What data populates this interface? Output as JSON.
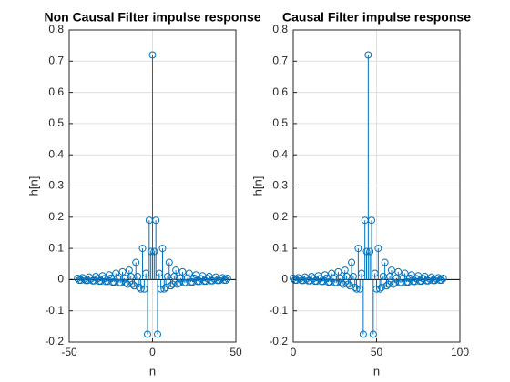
{
  "chart_data": [
    {
      "type": "stem",
      "title": "Non Causal Filter impulse response",
      "xlabel": "n",
      "ylabel": "h[n]",
      "color": "#0072bd",
      "grid": true,
      "xlim": [
        -50,
        50
      ],
      "xticks": [
        -50,
        0,
        50
      ],
      "ylim": [
        -0.2,
        0.8
      ],
      "yticks": [
        -0.2,
        -0.1,
        0,
        0.1,
        0.2,
        0.3,
        0.4,
        0.5,
        0.6,
        0.7,
        0.8
      ],
      "x": [
        -45,
        -44,
        -43,
        -42,
        -41,
        -40,
        -39,
        -38,
        -37,
        -36,
        -35,
        -34,
        -33,
        -32,
        -31,
        -30,
        -29,
        -28,
        -27,
        -26,
        -25,
        -24,
        -23,
        -22,
        -21,
        -20,
        -19,
        -18,
        -17,
        -16,
        -15,
        -14,
        -13,
        -12,
        -11,
        -10,
        -9,
        -8,
        -7,
        -6,
        -5,
        -4,
        -3,
        -2,
        -1,
        0,
        1,
        2,
        3,
        4,
        5,
        6,
        7,
        8,
        9,
        10,
        11,
        12,
        13,
        14,
        15,
        16,
        17,
        18,
        19,
        20,
        21,
        22,
        23,
        24,
        25,
        26,
        27,
        28,
        29,
        30,
        31,
        32,
        33,
        34,
        35,
        36,
        37,
        38,
        39,
        40,
        41,
        42,
        43,
        44,
        45
      ],
      "values": [
        0.004,
        -0.002,
        -0.002,
        0.006,
        0.002,
        -0.003,
        -0.003,
        0.008,
        0.002,
        -0.004,
        -0.004,
        0.01,
        0.003,
        -0.005,
        -0.005,
        0.012,
        0.003,
        -0.006,
        -0.006,
        0.015,
        0.004,
        -0.008,
        -0.008,
        0.02,
        0.005,
        -0.01,
        -0.01,
        0.025,
        0.005,
        -0.01,
        -0.015,
        0.03,
        0.01,
        -0.015,
        -0.02,
        0.055,
        0.01,
        -0.025,
        -0.03,
        0.1,
        -0.03,
        0.02,
        -0.175,
        0.19,
        0.09,
        0.72,
        0.09,
        0.19,
        -0.175,
        0.02,
        -0.03,
        0.1,
        -0.03,
        -0.025,
        0.01,
        0.055,
        -0.02,
        -0.015,
        0.01,
        0.03,
        -0.015,
        -0.01,
        0.005,
        0.025,
        -0.01,
        -0.01,
        0.005,
        0.02,
        -0.008,
        -0.008,
        0.004,
        0.015,
        -0.006,
        -0.006,
        0.003,
        0.012,
        -0.005,
        -0.005,
        0.003,
        0.01,
        -0.004,
        -0.004,
        0.002,
        0.008,
        -0.003,
        -0.003,
        0.002,
        0.006,
        -0.002,
        -0.002,
        0.004
      ]
    },
    {
      "type": "stem",
      "title": "Causal Filter impulse response",
      "xlabel": "n",
      "ylabel": "h[n]",
      "color": "#0072bd",
      "grid": true,
      "xlim": [
        0,
        100
      ],
      "xticks": [
        0,
        50,
        100
      ],
      "ylim": [
        -0.2,
        0.8
      ],
      "yticks": [
        -0.2,
        -0.1,
        0,
        0.1,
        0.2,
        0.3,
        0.4,
        0.5,
        0.6,
        0.7,
        0.8
      ],
      "x": [
        0,
        1,
        2,
        3,
        4,
        5,
        6,
        7,
        8,
        9,
        10,
        11,
        12,
        13,
        14,
        15,
        16,
        17,
        18,
        19,
        20,
        21,
        22,
        23,
        24,
        25,
        26,
        27,
        28,
        29,
        30,
        31,
        32,
        33,
        34,
        35,
        36,
        37,
        38,
        39,
        40,
        41,
        42,
        43,
        44,
        45,
        46,
        47,
        48,
        49,
        50,
        51,
        52,
        53,
        54,
        55,
        56,
        57,
        58,
        59,
        60,
        61,
        62,
        63,
        64,
        65,
        66,
        67,
        68,
        69,
        70,
        71,
        72,
        73,
        74,
        75,
        76,
        77,
        78,
        79,
        80,
        81,
        82,
        83,
        84,
        85,
        86,
        87,
        88,
        89,
        90
      ],
      "values": [
        0.004,
        -0.002,
        -0.002,
        0.006,
        0.002,
        -0.003,
        -0.003,
        0.008,
        0.002,
        -0.004,
        -0.004,
        0.01,
        0.003,
        -0.005,
        -0.005,
        0.012,
        0.003,
        -0.006,
        -0.006,
        0.015,
        0.004,
        -0.008,
        -0.008,
        0.02,
        0.005,
        -0.01,
        -0.01,
        0.025,
        0.005,
        -0.01,
        -0.015,
        0.03,
        0.01,
        -0.015,
        -0.02,
        0.055,
        0.01,
        -0.025,
        -0.03,
        0.1,
        -0.03,
        0.02,
        -0.175,
        0.19,
        0.09,
        0.72,
        0.09,
        0.19,
        -0.175,
        0.02,
        -0.03,
        0.1,
        -0.03,
        -0.025,
        0.01,
        0.055,
        -0.02,
        -0.015,
        0.01,
        0.03,
        -0.015,
        -0.01,
        0.005,
        0.025,
        -0.01,
        -0.01,
        0.005,
        0.02,
        -0.008,
        -0.008,
        0.004,
        0.015,
        -0.006,
        -0.006,
        0.003,
        0.012,
        -0.005,
        -0.005,
        0.003,
        0.01,
        -0.004,
        -0.004,
        0.002,
        0.008,
        -0.003,
        -0.003,
        0.002,
        0.006,
        -0.002,
        -0.002,
        0.004
      ]
    }
  ]
}
